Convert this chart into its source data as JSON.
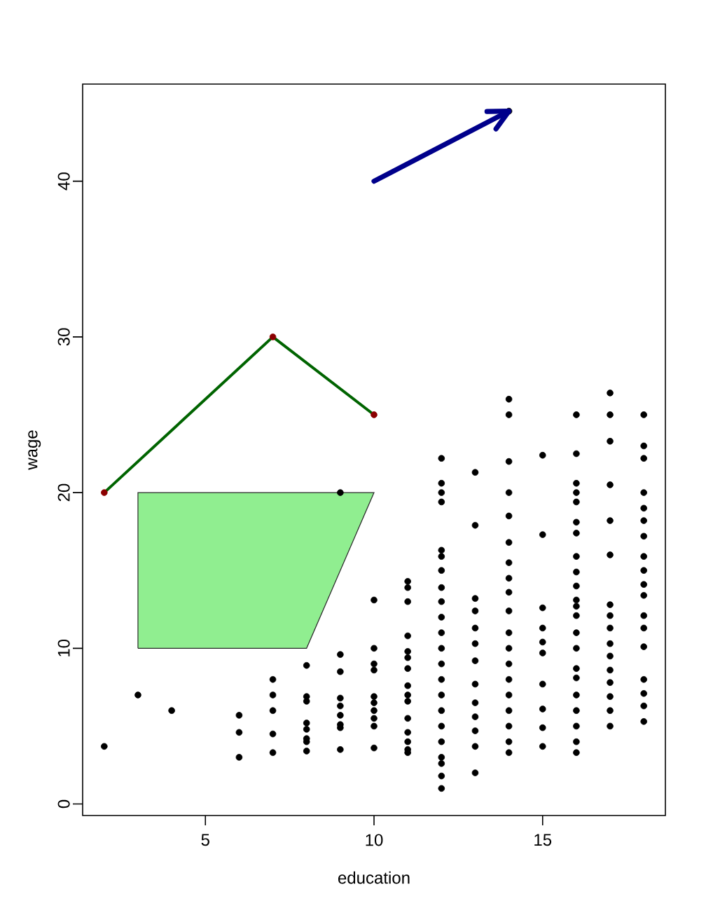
{
  "chart_data": {
    "type": "scatter",
    "xlabel": "education",
    "ylabel": "wage",
    "xlim": [
      1.36,
      18.64
    ],
    "ylim": [
      -0.74,
      46.24
    ],
    "xticks": [
      5,
      10,
      15
    ],
    "yticks": [
      0,
      10,
      20,
      30,
      40
    ],
    "series": [
      {
        "type": "area",
        "color": "#90ee90",
        "x": [
          3,
          3,
          10,
          8,
          3
        ],
        "values": [
          10,
          20,
          20,
          10,
          10
        ]
      },
      {
        "color": "#000000",
        "marker": "circle",
        "x": [
          2,
          3,
          4,
          6,
          6,
          6,
          7,
          7,
          7,
          7,
          7,
          8,
          8,
          8,
          8,
          8,
          8,
          8,
          8,
          9,
          9,
          9,
          9,
          9,
          9,
          9,
          9,
          9,
          10,
          10,
          10,
          10,
          10,
          10,
          10,
          10,
          10,
          10,
          11,
          11,
          11,
          11,
          11,
          11,
          11,
          11,
          11,
          11,
          11,
          11,
          11,
          11,
          11,
          12,
          12,
          12,
          12,
          12,
          12,
          12,
          12,
          12,
          12,
          12,
          12,
          12,
          12,
          12,
          12,
          12,
          12,
          12,
          12,
          12,
          12,
          13,
          13,
          13,
          13,
          13,
          13,
          13,
          13,
          13,
          13,
          13,
          13,
          13,
          14,
          14,
          14,
          14,
          14,
          14,
          14,
          14,
          14,
          14,
          14,
          14,
          14,
          14,
          14,
          14,
          14,
          14,
          14,
          14,
          15,
          15,
          15,
          15,
          15,
          15,
          15,
          15,
          15,
          15,
          16,
          16,
          16,
          16,
          16,
          16,
          16,
          16,
          16,
          16,
          16,
          16,
          16,
          16,
          16,
          16,
          16,
          16,
          16,
          16,
          16,
          16,
          17,
          17,
          17,
          17,
          17,
          17,
          17,
          17,
          17,
          17,
          17,
          17,
          17,
          17,
          17,
          17,
          18,
          18,
          18,
          18,
          18,
          18,
          18,
          18,
          18,
          18,
          18,
          18,
          18,
          18,
          18,
          18,
          18,
          18
        ],
        "values": [
          3.7,
          7.0,
          6.0,
          5.7,
          4.6,
          3.0,
          8.0,
          7.0,
          6.0,
          4.5,
          3.3,
          8.9,
          6.9,
          6.6,
          5.2,
          4.8,
          4.2,
          4.0,
          3.4,
          20.0,
          9.6,
          8.5,
          6.8,
          6.3,
          5.7,
          5.1,
          4.9,
          3.5,
          13.1,
          10.0,
          9.0,
          8.6,
          6.9,
          6.5,
          6.0,
          5.5,
          5.0,
          3.6,
          14.3,
          13.9,
          13.0,
          10.8,
          9.8,
          9.4,
          8.7,
          7.6,
          7.0,
          6.6,
          5.5,
          4.6,
          4.0,
          3.5,
          3.3,
          22.2,
          20.6,
          20.0,
          19.4,
          16.3,
          15.9,
          15.0,
          13.9,
          13.0,
          12.0,
          11.0,
          10.0,
          9.0,
          8.0,
          7.0,
          6.0,
          5.0,
          4.0,
          3.0,
          2.6,
          1.8,
          1.0,
          21.3,
          17.9,
          13.2,
          12.4,
          11.3,
          10.3,
          9.2,
          7.7,
          6.5,
          5.6,
          4.7,
          3.7,
          2.0,
          44.5,
          26.0,
          25.0,
          22.0,
          20.0,
          18.5,
          16.8,
          15.5,
          14.5,
          13.6,
          12.4,
          11.0,
          10.0,
          9.0,
          8.0,
          7.0,
          6.0,
          5.0,
          4.0,
          3.3,
          22.4,
          17.3,
          12.6,
          11.3,
          10.4,
          9.7,
          7.7,
          6.1,
          4.9,
          3.7,
          25.0,
          22.5,
          20.6,
          20.0,
          19.4,
          18.1,
          17.4,
          15.9,
          14.9,
          14.0,
          13.1,
          12.7,
          12.1,
          11.0,
          10.0,
          8.7,
          8.1,
          7.0,
          6.0,
          5.0,
          4.0,
          3.3,
          26.4,
          25.0,
          23.3,
          20.5,
          18.2,
          16.0,
          12.8,
          12.1,
          11.3,
          10.3,
          9.5,
          8.6,
          7.8,
          6.9,
          6.0,
          5.0,
          25.0,
          23.0,
          22.2,
          20.0,
          19.0,
          18.2,
          17.2,
          15.9,
          15.0,
          14.1,
          13.4,
          12.1,
          11.3,
          10.1,
          8.0,
          7.1,
          6.3,
          5.3
        ]
      },
      {
        "type": "line",
        "color": "#006400",
        "x": [
          2,
          7,
          10
        ],
        "values": [
          20,
          30,
          25
        ]
      },
      {
        "type": "scatter",
        "color": "#8b0000",
        "marker": "circle",
        "x": [
          2,
          7,
          10
        ],
        "values": [
          20,
          30,
          25
        ]
      },
      {
        "type": "line",
        "color": "#00008b",
        "x": [
          10,
          14
        ],
        "values": [
          40,
          44.5
        ]
      }
    ]
  }
}
